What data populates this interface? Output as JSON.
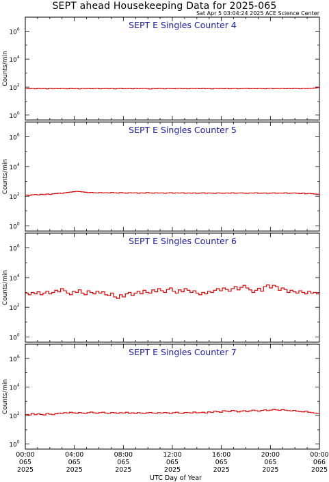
{
  "title": "SEPT ahead Housekeeping Data for 2025-065",
  "timestamp": "Sat Apr  5 03:04:24 2025 ACE Science Center",
  "colors": {
    "trace": "#dd0000",
    "panel_title": "#1a1aa8",
    "axes": "#000000"
  },
  "chart_data": [
    {
      "type": "line",
      "title": "SEPT E Singles Counter 4",
      "ylabel": "Counts/min",
      "xlabel": "UTC Day of Year",
      "yscale": "log",
      "ylim": [
        1,
        10000000
      ],
      "xlim_hours": [
        0,
        24
      ],
      "series": [
        {
          "values": [
            80,
            78,
            82,
            76,
            84,
            79,
            81,
            75,
            83,
            78,
            80,
            77,
            82,
            79,
            76,
            84,
            78,
            80,
            74,
            82,
            79,
            81,
            77,
            80,
            83,
            76,
            79,
            81,
            78,
            82,
            75,
            80,
            84,
            77,
            79,
            81,
            76,
            83,
            78,
            80,
            82,
            79,
            73,
            81,
            78,
            84,
            80,
            76,
            82,
            79,
            77,
            81,
            83,
            78,
            80,
            76,
            82,
            79,
            81,
            77,
            84,
            78,
            80,
            75,
            82,
            79,
            81,
            78,
            83,
            77,
            80,
            82,
            76,
            79,
            81,
            84,
            78,
            80,
            77,
            82,
            79,
            76,
            81,
            83,
            78,
            80,
            79,
            82,
            77,
            81,
            78,
            84,
            80,
            76,
            82,
            79,
            81,
            83,
            87,
            92
          ]
        }
      ]
    },
    {
      "type": "line",
      "title": "SEPT E Singles Counter 5",
      "ylabel": "Counts/min",
      "xlabel": "UTC Day of Year",
      "yscale": "log",
      "ylim": [
        1,
        10000000
      ],
      "xlim_hours": [
        0,
        24
      ],
      "series": [
        {
          "values": [
            120,
            115,
            125,
            130,
            122,
            135,
            128,
            140,
            132,
            145,
            150,
            160,
            155,
            170,
            180,
            190,
            200,
            210,
            205,
            195,
            185,
            175,
            180,
            170,
            165,
            175,
            168,
            172,
            165,
            178,
            170,
            162,
            175,
            168,
            160,
            172,
            165,
            170,
            158,
            168,
            162,
            175,
            165,
            160,
            170,
            163,
            168,
            158,
            165,
            172,
            160,
            168,
            163,
            170,
            158,
            165,
            160,
            168,
            155,
            162,
            170,
            158,
            165,
            160,
            155,
            168,
            162,
            158,
            165,
            160,
            170,
            158,
            163,
            168,
            160,
            155,
            165,
            162,
            170,
            158,
            160,
            165,
            155,
            162,
            168,
            158,
            163,
            160,
            170,
            155,
            160,
            165,
            158,
            150,
            162,
            145,
            155,
            148,
            140,
            135
          ]
        }
      ]
    },
    {
      "type": "line",
      "title": "SEPT E Singles Counter 6",
      "ylabel": "Counts/min",
      "xlabel": "UTC Day of Year",
      "yscale": "log",
      "ylim": [
        1,
        10000000
      ],
      "xlim_hours": [
        0,
        24
      ],
      "series": [
        {
          "values": [
            900,
            700,
            1000,
            800,
            1100,
            700,
            900,
            1200,
            800,
            1000,
            1400,
            1100,
            1800,
            1300,
            900,
            700,
            1200,
            1000,
            1500,
            900,
            700,
            1300,
            1000,
            800,
            1200,
            900,
            1100,
            700,
            600,
            900,
            500,
            400,
            700,
            500,
            800,
            1000,
            600,
            900,
            1200,
            800,
            1400,
            1000,
            900,
            1500,
            1100,
            1800,
            1300,
            1000,
            1600,
            2000,
            1200,
            900,
            1500,
            1100,
            1800,
            1400,
            1000,
            1300,
            900,
            700,
            1000,
            800,
            1200,
            1000,
            1400,
            1800,
            1300,
            2000,
            1600,
            1200,
            1800,
            2500,
            1500,
            2200,
            3000,
            2000,
            1500,
            1000,
            1400,
            1900,
            1200,
            2500,
            3200,
            2000,
            3000,
            2500,
            1400,
            2000,
            1600,
            1000,
            1400,
            1100,
            900,
            1300,
            1000,
            800,
            1200,
            900,
            1000,
            800
          ]
        }
      ]
    },
    {
      "type": "line",
      "title": "SEPT E Singles Counter 7",
      "ylabel": "Counts/min",
      "xlabel": "UTC Day of Year",
      "yscale": "log",
      "ylim": [
        1,
        10000000
      ],
      "xlim_hours": [
        0,
        24
      ],
      "series": [
        {
          "values": [
            120,
            110,
            140,
            115,
            130,
            120,
            110,
            140,
            125,
            115,
            135,
            150,
            140,
            160,
            150,
            170,
            155,
            145,
            165,
            150,
            140,
            160,
            175,
            155,
            145,
            160,
            170,
            150,
            140,
            165,
            155,
            145,
            160,
            150,
            170,
            145,
            155,
            140,
            160,
            150,
            140,
            155,
            165,
            150,
            145,
            160,
            150,
            165,
            155,
            140,
            160,
            170,
            150,
            145,
            165,
            160,
            150,
            175,
            155,
            160,
            170,
            150,
            180,
            165,
            200,
            185,
            170,
            220,
            200,
            190,
            230,
            210,
            180,
            200,
            220,
            190,
            210,
            240,
            220,
            200,
            230,
            250,
            220,
            240,
            270,
            250,
            230,
            260,
            240,
            220,
            210,
            230,
            200,
            190,
            180,
            200,
            170,
            160,
            150,
            140
          ]
        }
      ]
    }
  ],
  "yaxis": {
    "ticks": [
      {
        "base": "10",
        "exp": "0"
      },
      {
        "base": "10",
        "exp": "2"
      },
      {
        "base": "10",
        "exp": "4"
      },
      {
        "base": "10",
        "exp": "6"
      }
    ]
  },
  "xaxis": {
    "label": "UTC Day of Year",
    "ticks": [
      {
        "time": "00:00",
        "doy": "065",
        "year": "2025"
      },
      {
        "time": "04:00",
        "doy": "065",
        "year": "2025"
      },
      {
        "time": "08:00",
        "doy": "065",
        "year": "2025"
      },
      {
        "time": "12:00",
        "doy": "065",
        "year": "2025"
      },
      {
        "time": "16:00",
        "doy": "065",
        "year": "2025"
      },
      {
        "time": "20:00",
        "doy": "065",
        "year": "2025"
      },
      {
        "time": "00:00",
        "doy": "066",
        "year": "2025"
      }
    ]
  }
}
